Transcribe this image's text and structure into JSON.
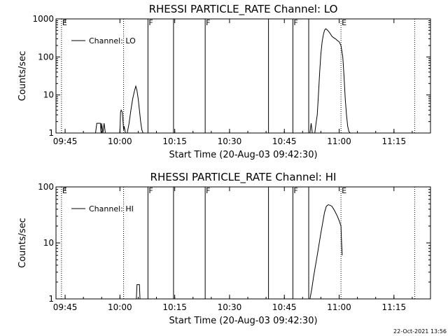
{
  "chart_data": [
    {
      "type": "line",
      "title": "RHESSI PARTICLE_RATE Channel: LO",
      "xlabel": "Start Time (20-Aug-03 09:42:30)",
      "ylabel": "Counts/sec",
      "y_scale": "log",
      "xlim": [
        "09:42:30",
        "11:25:00"
      ],
      "ylim": [
        1,
        1000
      ],
      "x_ticks": [
        "09:45",
        "10:00",
        "10:15",
        "10:30",
        "10:45",
        "11:00",
        "11:15"
      ],
      "y_ticks": [
        {
          "value": 1,
          "label": "1"
        },
        {
          "value": 10,
          "label": "10"
        },
        {
          "value": 100,
          "label": "100"
        },
        {
          "value": 1000,
          "label": "1000"
        }
      ],
      "legend": {
        "position": "top-left",
        "entries": [
          "Channel: LO"
        ]
      },
      "series": [
        {
          "name": "Channel: LO",
          "x": [
            "09:53:20",
            "09:53:40",
            "09:54:40",
            "09:54:50",
            "09:55:00",
            "09:55:20",
            "09:55:40",
            "09:56:00",
            "10:00:00",
            "10:00:10",
            "10:00:20",
            "10:00:40",
            "10:01:00",
            "10:01:10",
            "10:01:30",
            "10:02:00",
            "10:02:30",
            "10:03:00",
            "10:03:30",
            "10:04:00",
            "10:04:20",
            "10:04:40",
            "10:05:00",
            "10:05:20",
            "10:05:40",
            "10:06:00",
            "10:06:20",
            "10:52:00",
            "10:52:20",
            "10:52:40",
            "10:53:20",
            "10:53:40",
            "10:54:00",
            "10:54:20",
            "10:54:40",
            "10:55:00",
            "10:55:20",
            "10:55:40",
            "10:56:00",
            "10:56:20",
            "10:56:40",
            "10:57:00",
            "10:57:30",
            "10:58:00",
            "10:58:30",
            "10:59:00",
            "10:59:30",
            "11:00:00",
            "11:00:30",
            "11:01:00",
            "11:01:20",
            "11:01:40",
            "11:02:00",
            "11:02:20",
            "11:02:40",
            "11:03:00"
          ],
          "y": [
            1,
            1.8,
            1.8,
            1,
            1.8,
            1,
            1.8,
            1,
            1,
            3.5,
            4,
            3.5,
            1.2,
            1.5,
            1,
            1,
            1.8,
            4,
            8,
            13,
            17,
            13,
            8,
            4,
            2,
            1.2,
            1,
            1,
            1.8,
            1,
            1,
            1.8,
            3,
            10,
            40,
            120,
            250,
            380,
            500,
            550,
            520,
            480,
            420,
            350,
            320,
            300,
            270,
            250,
            200,
            100,
            30,
            8,
            3,
            1.5,
            1.1,
            1
          ]
        }
      ],
      "markers": [
        {
          "x": "09:44:00",
          "label": "E",
          "style": "dotted"
        },
        {
          "x": "10:01:00",
          "style": "dotted"
        },
        {
          "x": "10:07:40",
          "label": "F",
          "style": "solid"
        },
        {
          "x": "10:14:40",
          "style": "solid"
        },
        {
          "x": "10:23:20",
          "label": "F",
          "style": "solid"
        },
        {
          "x": "10:40:40",
          "style": "solid"
        },
        {
          "x": "10:47:20",
          "label": "F",
          "style": "solid"
        },
        {
          "x": "10:51:40",
          "style": "solid"
        },
        {
          "x": "11:00:30",
          "label": "E",
          "style": "dotted"
        },
        {
          "x": "11:20:40",
          "style": "dotted"
        }
      ]
    },
    {
      "type": "line",
      "title": "RHESSI PARTICLE_RATE Channel: HI",
      "xlabel": "Start Time (20-Aug-03 09:42:30)",
      "ylabel": "Counts/sec",
      "y_scale": "log",
      "xlim": [
        "09:42:30",
        "11:25:00"
      ],
      "ylim": [
        1,
        100
      ],
      "x_ticks": [
        "09:45",
        "10:00",
        "10:15",
        "10:30",
        "10:45",
        "11:00",
        "11:15"
      ],
      "y_ticks": [
        {
          "value": 1,
          "label": "1"
        },
        {
          "value": 10,
          "label": "10"
        },
        {
          "value": 100,
          "label": "100"
        }
      ],
      "legend": {
        "position": "top-left",
        "entries": [
          "Channel: HI"
        ]
      },
      "series": [
        {
          "name": "Channel: HI",
          "x": [
            "10:04:30",
            "10:04:40",
            "10:05:00",
            "10:05:20",
            "10:05:30",
            "10:52:00",
            "10:52:30",
            "10:53:00",
            "10:54:00",
            "10:55:00",
            "10:56:00",
            "10:56:30",
            "10:57:00",
            "10:57:30",
            "10:58:00",
            "10:58:30",
            "10:59:00",
            "10:59:30",
            "11:00:00",
            "11:00:30",
            "11:00:40",
            "11:00:50"
          ],
          "y": [
            1,
            1.8,
            1.8,
            1.8,
            1,
            1,
            1.5,
            2.5,
            6,
            15,
            35,
            45,
            48,
            47,
            45,
            40,
            35,
            30,
            25,
            20,
            10,
            6
          ]
        }
      ],
      "markers": [
        {
          "x": "09:44:00",
          "label": "E",
          "style": "dotted"
        },
        {
          "x": "10:01:00",
          "style": "dotted"
        },
        {
          "x": "10:07:40",
          "label": "F",
          "style": "solid"
        },
        {
          "x": "10:14:40",
          "style": "solid"
        },
        {
          "x": "10:23:20",
          "label": "F",
          "style": "solid"
        },
        {
          "x": "10:40:40",
          "style": "solid"
        },
        {
          "x": "10:47:20",
          "label": "F",
          "style": "solid"
        },
        {
          "x": "10:51:40",
          "style": "solid"
        },
        {
          "x": "11:00:30",
          "label": "E",
          "style": "dotted"
        },
        {
          "x": "11:20:40",
          "style": "dotted"
        }
      ]
    }
  ],
  "footer": {
    "timestamp": "22-Oct-2021 13:56"
  }
}
